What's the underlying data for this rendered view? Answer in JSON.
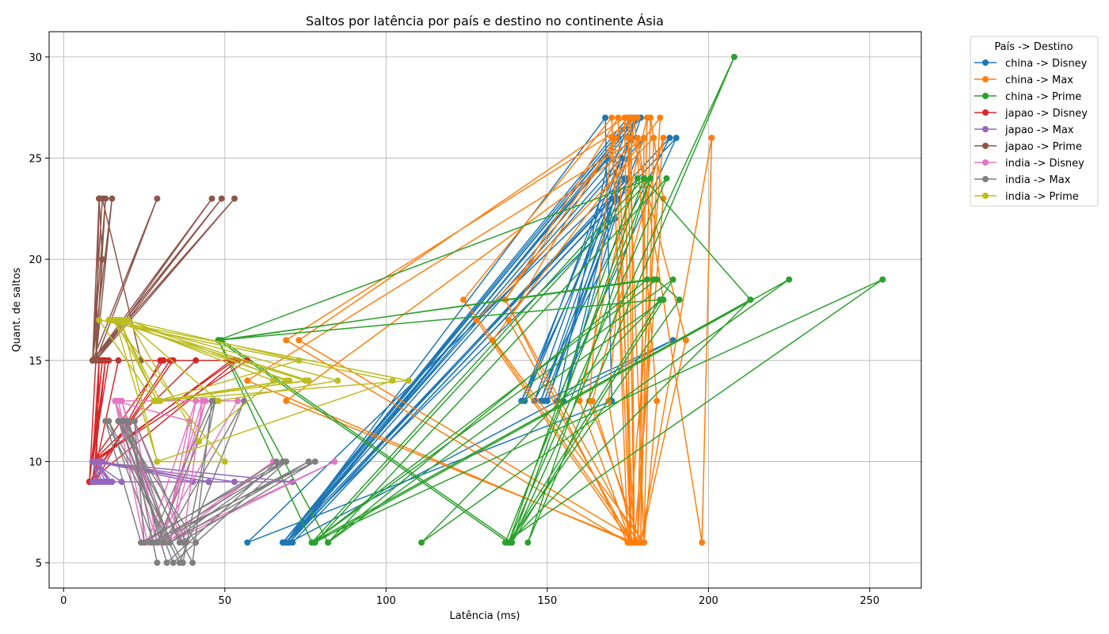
{
  "chart_data": {
    "type": "line",
    "title": "Saltos por latência por país e destino no continente Ásia",
    "xlabel": "Latência (ms)",
    "ylabel": "Quant. de saltos",
    "xlim": [
      -4.5,
      266
    ],
    "ylim": [
      3.75,
      31.25
    ],
    "xticks": [
      0,
      50,
      100,
      150,
      200,
      250
    ],
    "yticks": [
      5,
      10,
      15,
      20,
      25,
      30
    ],
    "grid": true,
    "legend_title": "País -> Destino",
    "legend_position": "outside-top-right",
    "series": [
      {
        "name": "china -> Disney",
        "color": "#1f77b4",
        "points": [
          [
            172,
            26
          ],
          [
            68,
            6
          ],
          [
            176,
            27
          ],
          [
            143,
            13
          ],
          [
            170,
            23
          ],
          [
            69,
            6
          ],
          [
            179,
            27
          ],
          [
            150,
            13
          ],
          [
            175,
            24
          ],
          [
            70,
            6
          ],
          [
            188,
            26
          ],
          [
            146,
            13
          ],
          [
            173,
            25
          ],
          [
            68,
            6
          ],
          [
            177,
            27
          ],
          [
            155,
            13
          ],
          [
            171,
            22
          ],
          [
            69,
            6
          ],
          [
            180,
            26
          ],
          [
            149,
            13
          ],
          [
            189,
            16
          ],
          [
            70,
            6
          ],
          [
            178,
            27
          ],
          [
            142,
            13
          ],
          [
            174,
            24
          ],
          [
            57,
            6
          ],
          [
            170,
            13
          ],
          [
            168,
            27
          ],
          [
            69,
            6
          ],
          [
            176,
            26
          ],
          [
            148,
            13
          ],
          [
            172,
            23
          ],
          [
            71,
            6
          ],
          [
            190,
            26
          ],
          [
            153,
            13
          ],
          [
            169,
            25
          ],
          [
            68,
            6
          ],
          [
            175,
            27
          ]
        ]
      },
      {
        "name": "china -> Max",
        "color": "#ff7f0e",
        "points": [
          [
            178,
            27
          ],
          [
            69,
            16
          ],
          [
            175,
            6
          ],
          [
            170,
            27
          ],
          [
            124,
            18
          ],
          [
            180,
            6
          ],
          [
            183,
            26
          ],
          [
            128,
            17
          ],
          [
            176,
            6
          ],
          [
            172,
            27
          ],
          [
            137,
            18
          ],
          [
            178,
            6
          ],
          [
            185,
            27
          ],
          [
            133,
            16
          ],
          [
            177,
            6
          ],
          [
            171,
            26
          ],
          [
            138,
            17
          ],
          [
            176,
            6
          ],
          [
            174,
            27
          ],
          [
            73,
            16
          ],
          [
            179,
            6
          ],
          [
            180,
            26
          ],
          [
            69,
            13
          ],
          [
            177,
            6
          ],
          [
            176,
            27
          ],
          [
            137,
            18
          ],
          [
            175,
            6
          ],
          [
            186,
            26
          ],
          [
            164,
            13
          ],
          [
            178,
            6
          ],
          [
            181,
            27
          ],
          [
            160,
            13
          ],
          [
            176,
            6
          ],
          [
            169,
            13
          ],
          [
            177,
            27
          ],
          [
            184,
            13
          ],
          [
            180,
            6
          ],
          [
            175,
            27
          ],
          [
            193,
            16
          ],
          [
            179,
            6
          ],
          [
            201,
            26
          ],
          [
            198,
            6
          ],
          [
            178,
            26
          ],
          [
            57,
            14
          ],
          [
            176,
            6
          ],
          [
            170,
            26
          ],
          [
            163,
            13
          ],
          [
            179,
            6
          ],
          [
            182,
            27
          ],
          [
            186,
            23
          ],
          [
            177,
            6
          ],
          [
            175,
            26
          ]
        ]
      },
      {
        "name": "china -> Prime",
        "color": "#2ca02c",
        "points": [
          [
            183,
            19
          ],
          [
            48,
            16
          ],
          [
            77,
            6
          ],
          [
            180,
            24
          ],
          [
            213,
            18
          ],
          [
            138,
            6
          ],
          [
            187,
            24
          ],
          [
            82,
            6
          ],
          [
            181,
            19
          ],
          [
            49,
            16
          ],
          [
            139,
            6
          ],
          [
            208,
            30
          ],
          [
            144,
            6
          ],
          [
            182,
            24
          ],
          [
            78,
            6
          ],
          [
            225,
            19
          ],
          [
            111,
            6
          ],
          [
            185,
            18
          ],
          [
            48,
            16
          ],
          [
            138,
            6
          ],
          [
            189,
            19
          ],
          [
            77,
            6
          ],
          [
            254,
            19
          ],
          [
            137,
            6
          ],
          [
            182,
            24
          ],
          [
            48,
            16
          ],
          [
            82,
            6
          ],
          [
            186,
            18
          ],
          [
            139,
            6
          ],
          [
            180,
            24
          ],
          [
            213,
            18
          ],
          [
            77,
            6
          ],
          [
            184,
            19
          ],
          [
            191,
            18
          ],
          [
            138,
            6
          ],
          [
            178,
            24
          ]
        ]
      },
      {
        "name": "japao -> Disney",
        "color": "#d62728",
        "points": [
          [
            10,
            15
          ],
          [
            53,
            15
          ],
          [
            9,
            10
          ],
          [
            11,
            15
          ],
          [
            33,
            15
          ],
          [
            8,
            9
          ],
          [
            12,
            15
          ],
          [
            57,
            15
          ],
          [
            9,
            10
          ],
          [
            13,
            15
          ],
          [
            30,
            15
          ],
          [
            10,
            9
          ],
          [
            11,
            15
          ],
          [
            41,
            15
          ],
          [
            9,
            10
          ],
          [
            14,
            15
          ],
          [
            34,
            15
          ],
          [
            8,
            9
          ],
          [
            12,
            15
          ],
          [
            52,
            15
          ],
          [
            10,
            10
          ],
          [
            11,
            15
          ],
          [
            17,
            15
          ],
          [
            9,
            9
          ],
          [
            13,
            15
          ],
          [
            31,
            15
          ],
          [
            9,
            10
          ],
          [
            12,
            15
          ],
          [
            54,
            15
          ],
          [
            8,
            9
          ],
          [
            10,
            15
          ]
        ]
      },
      {
        "name": "japao -> Max",
        "color": "#9467bd",
        "points": [
          [
            9,
            10
          ],
          [
            18,
            9
          ],
          [
            10,
            9
          ],
          [
            12,
            10
          ],
          [
            45,
            9
          ],
          [
            9,
            10
          ],
          [
            11,
            9
          ],
          [
            53,
            9
          ],
          [
            10,
            10
          ],
          [
            13,
            9
          ],
          [
            71,
            9
          ],
          [
            9,
            10
          ],
          [
            12,
            9
          ],
          [
            40,
            9
          ],
          [
            10,
            10
          ],
          [
            15,
            9
          ],
          [
            9,
            9
          ],
          [
            11,
            10
          ],
          [
            14,
            9
          ],
          [
            10,
            10
          ]
        ]
      },
      {
        "name": "japao -> Prime",
        "color": "#8c564b",
        "points": [
          [
            9,
            15
          ],
          [
            11,
            23
          ],
          [
            10,
            15
          ],
          [
            13,
            23
          ],
          [
            9,
            15
          ],
          [
            29,
            23
          ],
          [
            10,
            15
          ],
          [
            46,
            23
          ],
          [
            9,
            15
          ],
          [
            11,
            23
          ],
          [
            12,
            20
          ],
          [
            10,
            15
          ],
          [
            49,
            23
          ],
          [
            9,
            15
          ],
          [
            15,
            23
          ],
          [
            10,
            15
          ],
          [
            53,
            23
          ],
          [
            9,
            15
          ],
          [
            12,
            23
          ],
          [
            24,
            15
          ],
          [
            10,
            15
          ],
          [
            11,
            23
          ],
          [
            9,
            15
          ]
        ]
      },
      {
        "name": "india -> Disney",
        "color": "#e377c2",
        "points": [
          [
            25,
            6
          ],
          [
            16,
            13
          ],
          [
            33,
            6
          ],
          [
            44,
            13
          ],
          [
            30,
            6
          ],
          [
            18,
            13
          ],
          [
            54,
            13
          ],
          [
            29,
            6
          ],
          [
            16,
            13
          ],
          [
            39,
            12
          ],
          [
            31,
            6
          ],
          [
            84,
            10
          ],
          [
            33,
            6
          ],
          [
            41,
            13
          ],
          [
            26,
            6
          ],
          [
            17,
            13
          ],
          [
            54,
            13
          ],
          [
            29,
            6
          ],
          [
            22,
            12
          ],
          [
            37,
            6
          ],
          [
            43,
            13
          ],
          [
            30,
            6
          ],
          [
            65,
            10
          ],
          [
            32,
            6
          ],
          [
            18,
            13
          ]
        ]
      },
      {
        "name": "india -> Max",
        "color": "#7f7f7f",
        "points": [
          [
            29,
            5
          ],
          [
            20,
            12
          ],
          [
            33,
            6
          ],
          [
            68,
            10
          ],
          [
            24,
            6
          ],
          [
            13,
            12
          ],
          [
            36,
            5
          ],
          [
            56,
            13
          ],
          [
            31,
            6
          ],
          [
            17,
            12
          ],
          [
            40,
            5
          ],
          [
            46,
            13
          ],
          [
            27,
            6
          ],
          [
            78,
            10
          ],
          [
            36,
            6
          ],
          [
            19,
            12
          ],
          [
            32,
            5
          ],
          [
            66,
            10
          ],
          [
            25,
            6
          ],
          [
            22,
            12
          ],
          [
            38,
            6
          ],
          [
            41,
            6
          ],
          [
            17,
            12
          ],
          [
            34,
            5
          ],
          [
            69,
            10
          ],
          [
            28,
            6
          ],
          [
            14,
            12
          ],
          [
            37,
            5
          ],
          [
            47,
            13
          ],
          [
            29,
            6
          ],
          [
            76,
            10
          ],
          [
            33,
            6
          ],
          [
            18,
            12
          ]
        ]
      },
      {
        "name": "india -> Prime",
        "color": "#bcbd22",
        "points": [
          [
            18,
            17
          ],
          [
            29,
            10
          ],
          [
            50,
            10
          ],
          [
            15,
            17
          ],
          [
            70,
            14
          ],
          [
            29,
            13
          ],
          [
            17,
            17
          ],
          [
            76,
            14
          ],
          [
            28,
            13
          ],
          [
            11,
            17
          ],
          [
            102,
            14
          ],
          [
            29,
            10
          ],
          [
            16,
            17
          ],
          [
            85,
            14
          ],
          [
            48,
            13
          ],
          [
            19,
            17
          ],
          [
            73,
            15
          ],
          [
            29,
            13
          ],
          [
            107,
            14
          ],
          [
            14,
            17
          ],
          [
            75,
            14
          ],
          [
            30,
            13
          ],
          [
            17,
            17
          ],
          [
            65,
            14
          ],
          [
            42,
            11
          ],
          [
            20,
            17
          ],
          [
            69,
            14
          ],
          [
            29,
            13
          ],
          [
            16,
            17
          ]
        ]
      }
    ]
  }
}
